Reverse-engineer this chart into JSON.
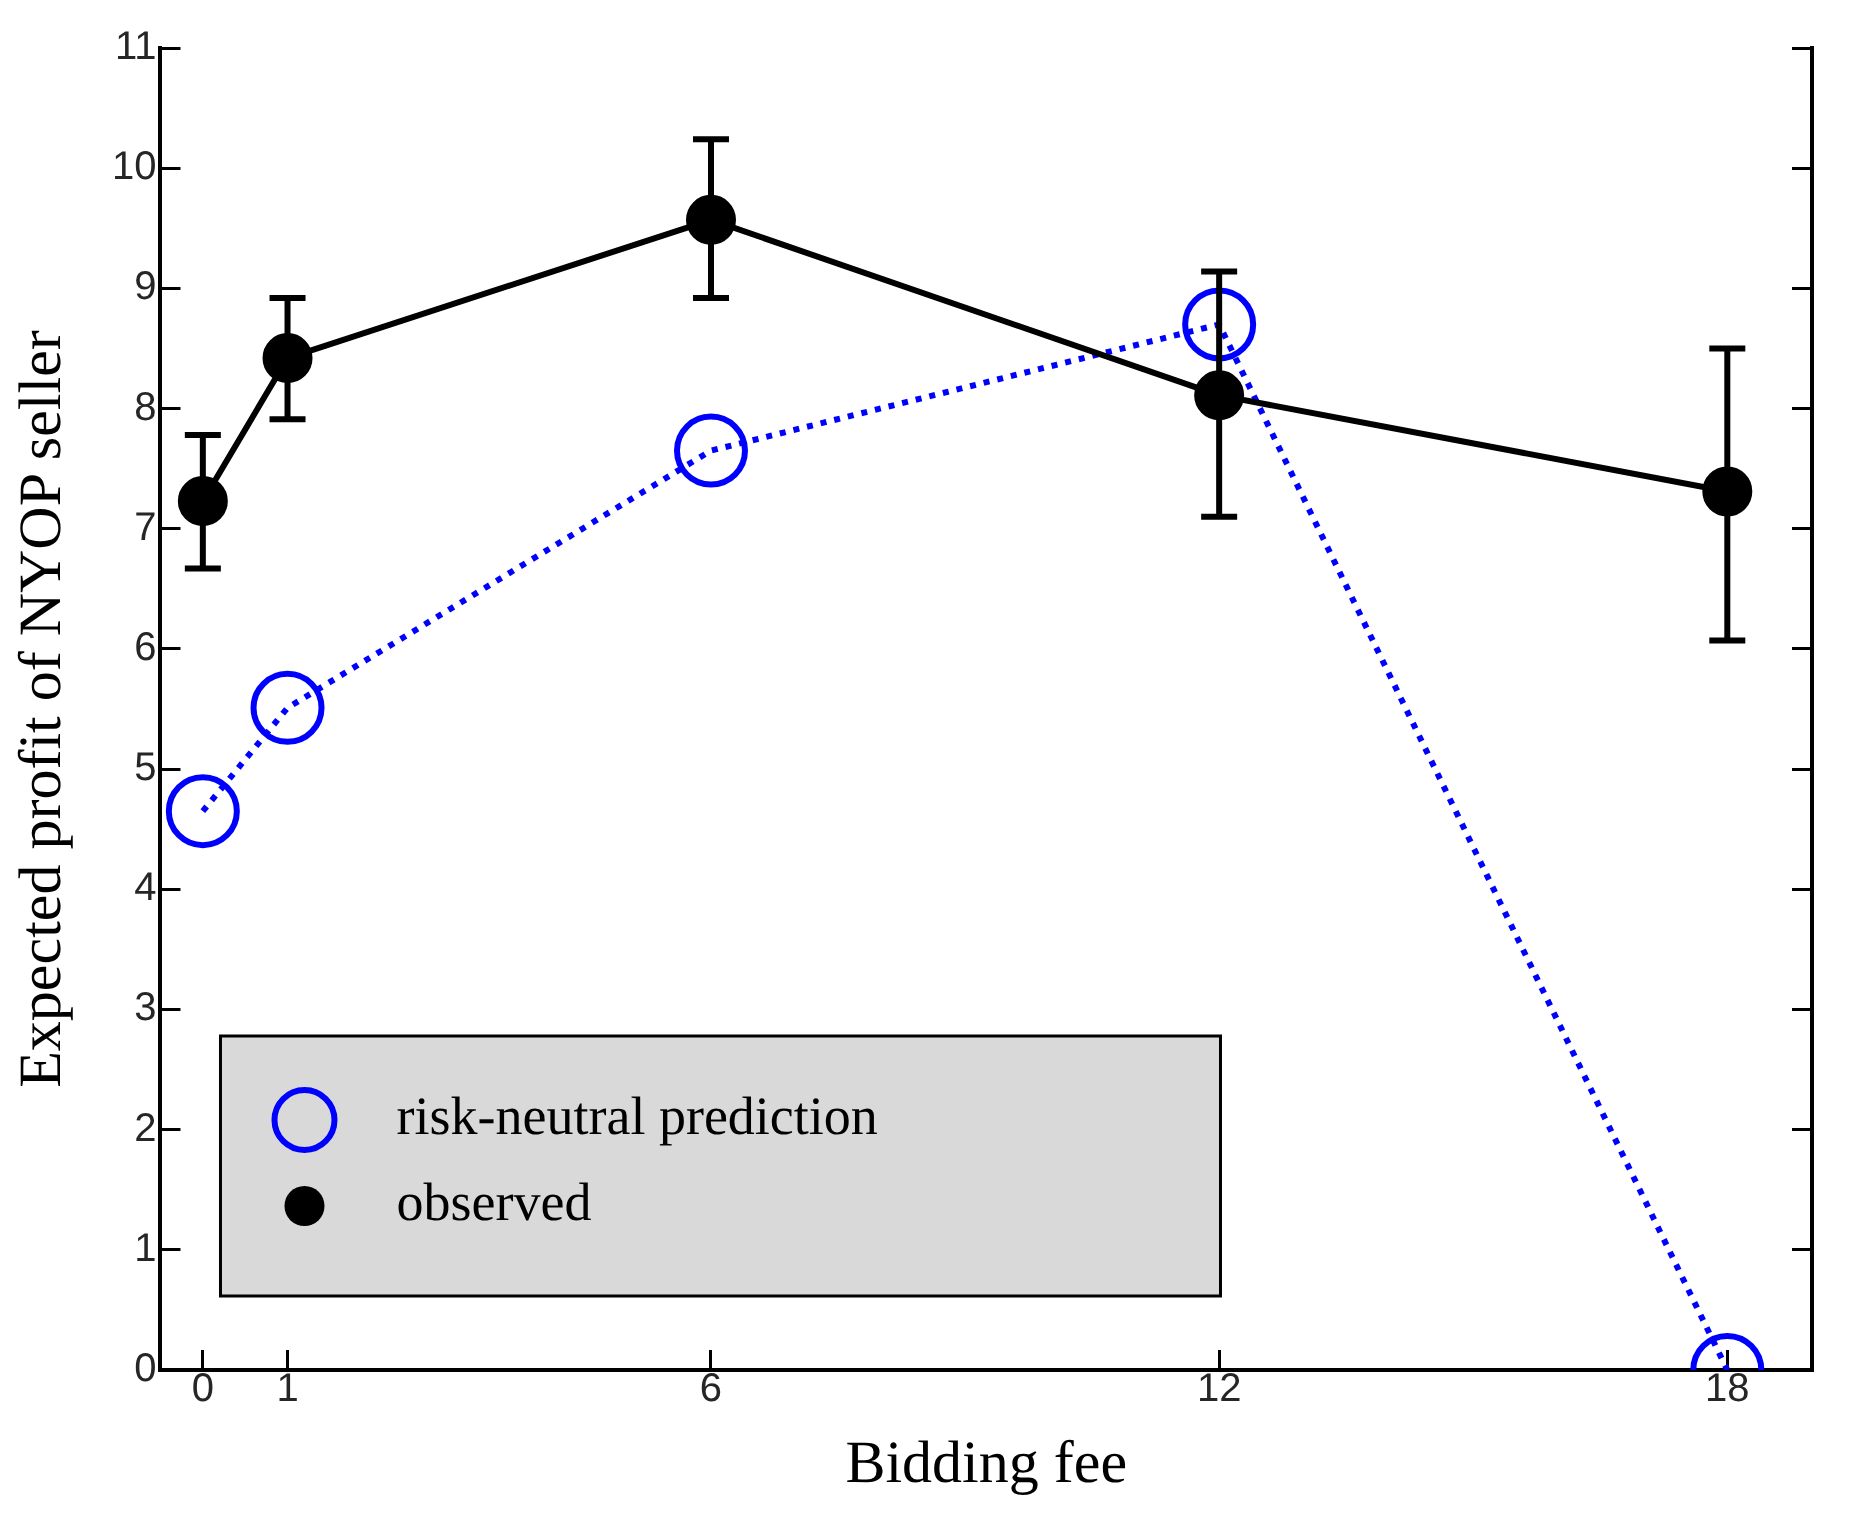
{
  "chart_data": {
    "type": "line",
    "xlabel": "Bidding fee",
    "ylabel": "Expected profit of NYOP seller",
    "x": [
      0,
      1,
      6,
      12,
      18
    ],
    "xlim": [
      -0.5,
      19
    ],
    "xticks": [
      0,
      1,
      6,
      12,
      18
    ],
    "ylim": [
      0,
      11
    ],
    "yticks": [
      0,
      1,
      2,
      3,
      4,
      5,
      6,
      7,
      8,
      9,
      10,
      11
    ],
    "grid": false,
    "legend": "bottom left",
    "series": [
      {
        "name": "risk-neutral prediction",
        "color": "#0000ff",
        "values": [
          4.65,
          5.51,
          7.65,
          8.7,
          0
        ],
        "marker": "circle",
        "line_style": "dotted"
      },
      {
        "name": "observed",
        "color": "#000000",
        "values": [
          7.23,
          8.42,
          9.57,
          8.11,
          7.31
        ],
        "marker": "circle",
        "line_style": "solid",
        "errors": [
          [
            6.67,
            7.78
          ],
          [
            7.91,
            8.92
          ],
          [
            8.92,
            10.24
          ],
          [
            7.1,
            9.14
          ],
          [
            6.07,
            8.5
          ]
        ]
      }
    ]
  }
}
